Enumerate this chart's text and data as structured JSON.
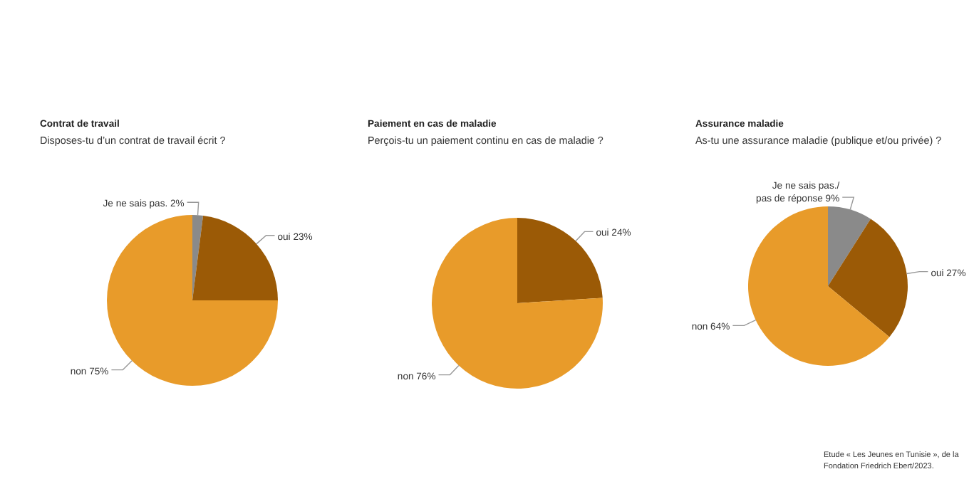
{
  "chart_data": [
    {
      "type": "pie",
      "title": "Contrat de travail",
      "subtitle": "Disposes-tu d’un contrat de travail écrit ?",
      "categories": [
        "Je ne sais pas.",
        "oui",
        "non"
      ],
      "values": [
        2,
        23,
        75
      ],
      "value_labels": [
        "2%",
        "23%",
        "75%"
      ],
      "colors": [
        "#8a8a8a",
        "#9b5a06",
        "#e89b2a"
      ],
      "legend": false
    },
    {
      "type": "pie",
      "title": "Paiement en cas de maladie",
      "subtitle": "Perçois-tu un paiement continu en cas de maladie ?",
      "categories": [
        "oui",
        "non"
      ],
      "values": [
        24,
        76
      ],
      "value_labels": [
        "24%",
        "76%"
      ],
      "colors": [
        "#9b5a06",
        "#e89b2a"
      ],
      "legend": false
    },
    {
      "type": "pie",
      "title": "Assurance maladie",
      "subtitle": "As-tu une assurance maladie (publique et/ou privée) ?",
      "categories": [
        "Je ne sais pas./ pas de réponse",
        "oui",
        "non"
      ],
      "values": [
        9,
        27,
        64
      ],
      "value_labels": [
        "9%",
        "27%",
        "64%"
      ],
      "colors": [
        "#8a8a8a",
        "#9b5a06",
        "#e89b2a"
      ],
      "legend": false,
      "annotations": [
        "Etude « Les Jeunes en Tunisie », de la Fondation Friedrich Ebert/2023."
      ]
    }
  ]
}
